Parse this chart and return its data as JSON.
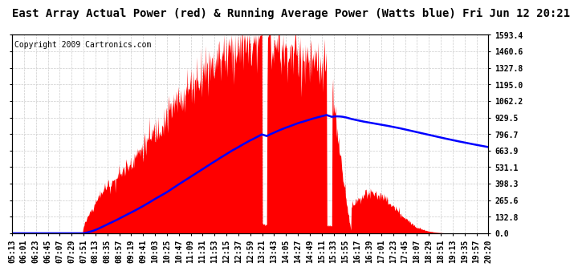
{
  "title": "East Array Actual Power (red) & Running Average Power (Watts blue) Fri Jun 12 20:21",
  "copyright": "Copyright 2009 Cartronics.com",
  "bg_color": "#ffffff",
  "plot_bg_color": "#ffffff",
  "grid_color": "#cccccc",
  "actual_color": "#ff0000",
  "avg_color": "#0000ff",
  "yticks": [
    0.0,
    132.8,
    265.6,
    398.3,
    531.1,
    663.9,
    796.7,
    929.5,
    1062.2,
    1195.0,
    1327.8,
    1460.6,
    1593.4
  ],
  "ymax": 1593.4,
  "xtick_labels": [
    "05:13",
    "06:01",
    "06:23",
    "06:45",
    "07:07",
    "07:29",
    "07:51",
    "08:13",
    "08:35",
    "08:57",
    "09:19",
    "09:41",
    "10:03",
    "10:25",
    "10:47",
    "11:09",
    "11:31",
    "11:53",
    "12:15",
    "12:37",
    "12:59",
    "13:21",
    "13:43",
    "14:05",
    "14:27",
    "14:49",
    "15:11",
    "15:33",
    "15:55",
    "16:17",
    "16:39",
    "17:01",
    "17:23",
    "17:45",
    "18:07",
    "18:29",
    "18:51",
    "19:13",
    "19:35",
    "19:57",
    "20:20"
  ],
  "title_fontsize": 10,
  "copyright_fontsize": 7,
  "axis_fontsize": 7,
  "n_points": 901
}
